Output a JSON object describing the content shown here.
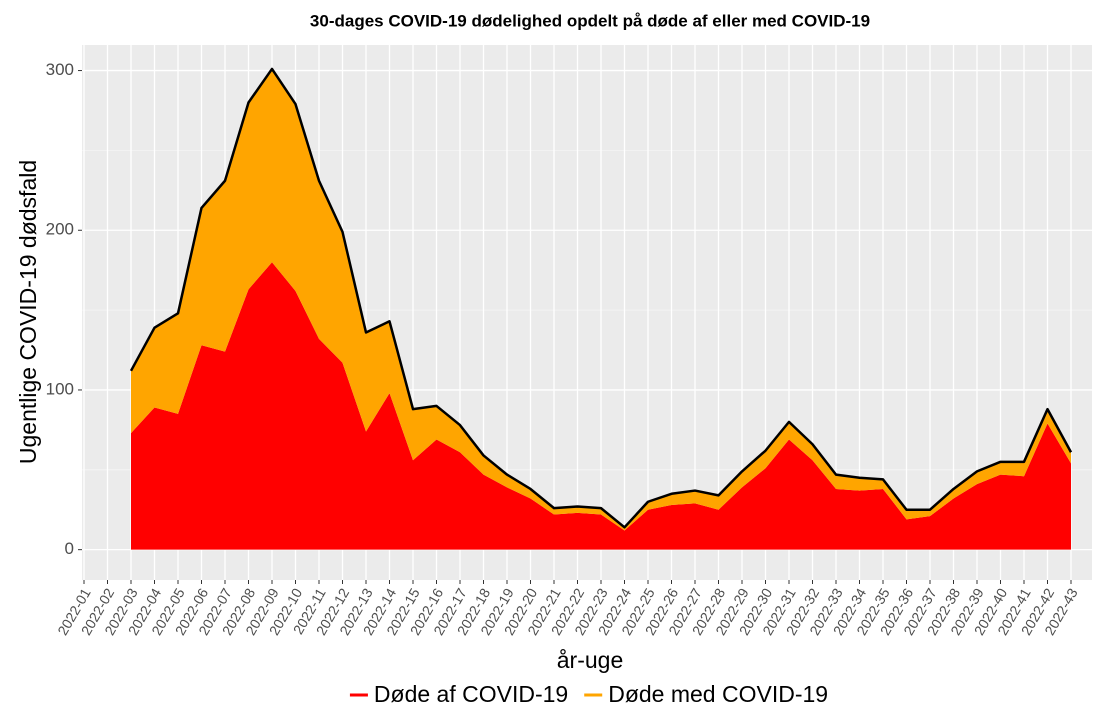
{
  "chart_data": {
    "type": "stacked_area",
    "title": "30-dages COVID-19 dødelighed opdelt på døde af eller med COVID-19",
    "x_label": "år-uge",
    "y_label": "Ugentlige COVID-19 dødsfald",
    "categories": [
      "2022-01",
      "2022-02",
      "2022-03",
      "2022-04",
      "2022-05",
      "2022-06",
      "2022-07",
      "2022-08",
      "2022-09",
      "2022-10",
      "2022-11",
      "2022-12",
      "2022-13",
      "2022-14",
      "2022-15",
      "2022-16",
      "2022-17",
      "2022-18",
      "2022-19",
      "2022-20",
      "2022-21",
      "2022-22",
      "2022-23",
      "2022-24",
      "2022-25",
      "2022-26",
      "2022-27",
      "2022-28",
      "2022-29",
      "2022-30",
      "2022-31",
      "2022-32",
      "2022-33",
      "2022-34",
      "2022-35",
      "2022-36",
      "2022-37",
      "2022-38",
      "2022-39",
      "2022-40",
      "2022-41",
      "2022-42",
      "2022-43"
    ],
    "series": [
      {
        "name": "Døde af COVID-19",
        "color": "#ff0000",
        "values": [
          null,
          null,
          73,
          89,
          85,
          128,
          124,
          163,
          180,
          162,
          132,
          117,
          74,
          98,
          56,
          69,
          61,
          47,
          39,
          32,
          22,
          23,
          22,
          12,
          25,
          28,
          29,
          25,
          39,
          51,
          69,
          56,
          38,
          37,
          38,
          19,
          21,
          32,
          41,
          47,
          46,
          79,
          54
        ]
      },
      {
        "name": "Døde med COVID-19",
        "color": "#ffa500",
        "values": [
          null,
          null,
          39,
          50,
          63,
          86,
          107,
          117,
          121,
          117,
          99,
          82,
          62,
          45,
          32,
          21,
          17,
          12,
          8,
          6,
          4,
          4,
          4,
          2,
          5,
          7,
          8,
          9,
          10,
          11,
          11,
          10,
          9,
          8,
          6,
          6,
          4,
          6,
          8,
          8,
          9,
          9,
          7
        ]
      }
    ],
    "outline_color": "#000000",
    "ylim": [
      -19,
      316
    ],
    "yticks": [
      0,
      100,
      200,
      300
    ],
    "grid": true,
    "legend": "bottom"
  }
}
